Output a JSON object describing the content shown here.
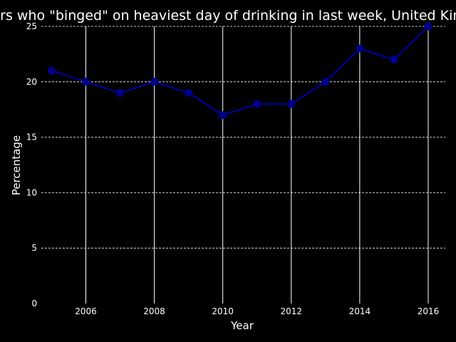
{
  "chart_data": {
    "type": "line",
    "title": "Drinkers who \"binged\" on heaviest day of drinking in last week, United Kingdom",
    "xlabel": "Year",
    "ylabel": "Percentage",
    "xlim": [
      2004.7,
      2016.5
    ],
    "ylim": [
      0,
      25
    ],
    "x_ticks": [
      2006,
      2008,
      2010,
      2012,
      2014,
      2016
    ],
    "y_ticks": [
      0,
      5,
      10,
      15,
      20,
      25
    ],
    "grid": {
      "x": "solid-white",
      "y": "dashed-white"
    },
    "background": "#000000",
    "series": [
      {
        "color": "#00008b",
        "marker": "circle",
        "x": [
          2005,
          2006,
          2007,
          2008,
          2009,
          2010,
          2011,
          2012,
          2013,
          2014,
          2015,
          2016
        ],
        "y": [
          21,
          20,
          19,
          20,
          19,
          17,
          18,
          18,
          20,
          23,
          22,
          25
        ]
      }
    ]
  }
}
